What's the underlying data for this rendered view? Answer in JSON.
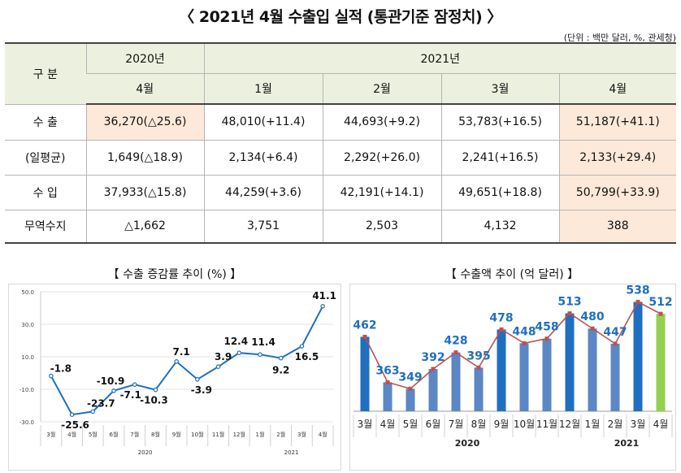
{
  "header": {
    "title": "〈 2021년 4월 수출입 실적 (통관기준 잠정치) 〉",
    "unit": "(단위 : 백만 달러, %, 관세청)"
  },
  "table": {
    "category_label": "구  분",
    "year_2020": "2020년",
    "year_2021": "2021년",
    "months": [
      "4월",
      "1월",
      "2월",
      "3월",
      "4월"
    ],
    "rows": [
      {
        "label": "수  출",
        "cells": [
          "36,270(△25.6)",
          "48,010(+11.4)",
          "44,693(+9.2)",
          "53,783(+16.5)",
          "51,187(+41.1)"
        ]
      },
      {
        "label": "(일평균)",
        "cells": [
          "1,649(△18.9)",
          "2,134(+6.4)",
          "2,292(+26.0)",
          "2,241(+16.5)",
          "2,133(+29.4)"
        ]
      },
      {
        "label": "수  입",
        "cells": [
          "37,933(△15.8)",
          "44,259(+3.6)",
          "42,191(+14.1)",
          "49,651(+18.8)",
          "50,799(+33.9)"
        ]
      },
      {
        "label": "무역수지",
        "cells": [
          "△1,662",
          "3,751",
          "2,503",
          "4,132",
          "388"
        ]
      }
    ],
    "highlight_color": "#fde9d9",
    "header_color": "#ebf1de"
  },
  "chart_data": [
    {
      "type": "line",
      "title": "【 수출 증감률 추이 (%) 】",
      "categories": [
        "3월",
        "4월",
        "5월",
        "6월",
        "7월",
        "8월",
        "9월",
        "10월",
        "11월",
        "12월",
        "1월",
        "2월",
        "3월",
        "4월"
      ],
      "year_groups": [
        {
          "label": "2020",
          "count": 10
        },
        {
          "label": "2021",
          "count": 4
        }
      ],
      "series": [
        {
          "values": [
            -1.8,
            -25.6,
            -23.7,
            -10.9,
            -7.1,
            -10.3,
            7.1,
            -3.9,
            3.9,
            12.4,
            11.4,
            9.2,
            16.5,
            41.1
          ]
        }
      ],
      "ylim": [
        -30,
        50
      ],
      "yticks": [
        "50.0",
        "30.0",
        "10.0",
        "-10.0",
        "-30.0"
      ],
      "ytick_values": [
        50,
        30,
        10,
        -10,
        -30
      ],
      "grid": true,
      "color": "#1f6fbf"
    },
    {
      "type": "bar",
      "title": "【 수출액 추이 (억 달러) 】",
      "categories": [
        "3월",
        "4월",
        "5월",
        "6월",
        "7월",
        "8월",
        "9월",
        "10월",
        "11월",
        "12월",
        "1월",
        "2월",
        "3월",
        "4월"
      ],
      "year_groups": [
        {
          "label": "2020",
          "count": 10
        },
        {
          "label": "2021",
          "count": 4
        }
      ],
      "series": [
        {
          "values": [
            462,
            363,
            349,
            392,
            428,
            395,
            478,
            448,
            458,
            513,
            480,
            447,
            538,
            512
          ]
        }
      ],
      "overlay_line": true,
      "ylim": [
        300,
        560
      ],
      "colors": {
        "dark": "#1f6fc0",
        "light": "#5b87c5",
        "last": "#92d050",
        "line": "#c0504d",
        "label": "#1f6fc0"
      }
    }
  ]
}
